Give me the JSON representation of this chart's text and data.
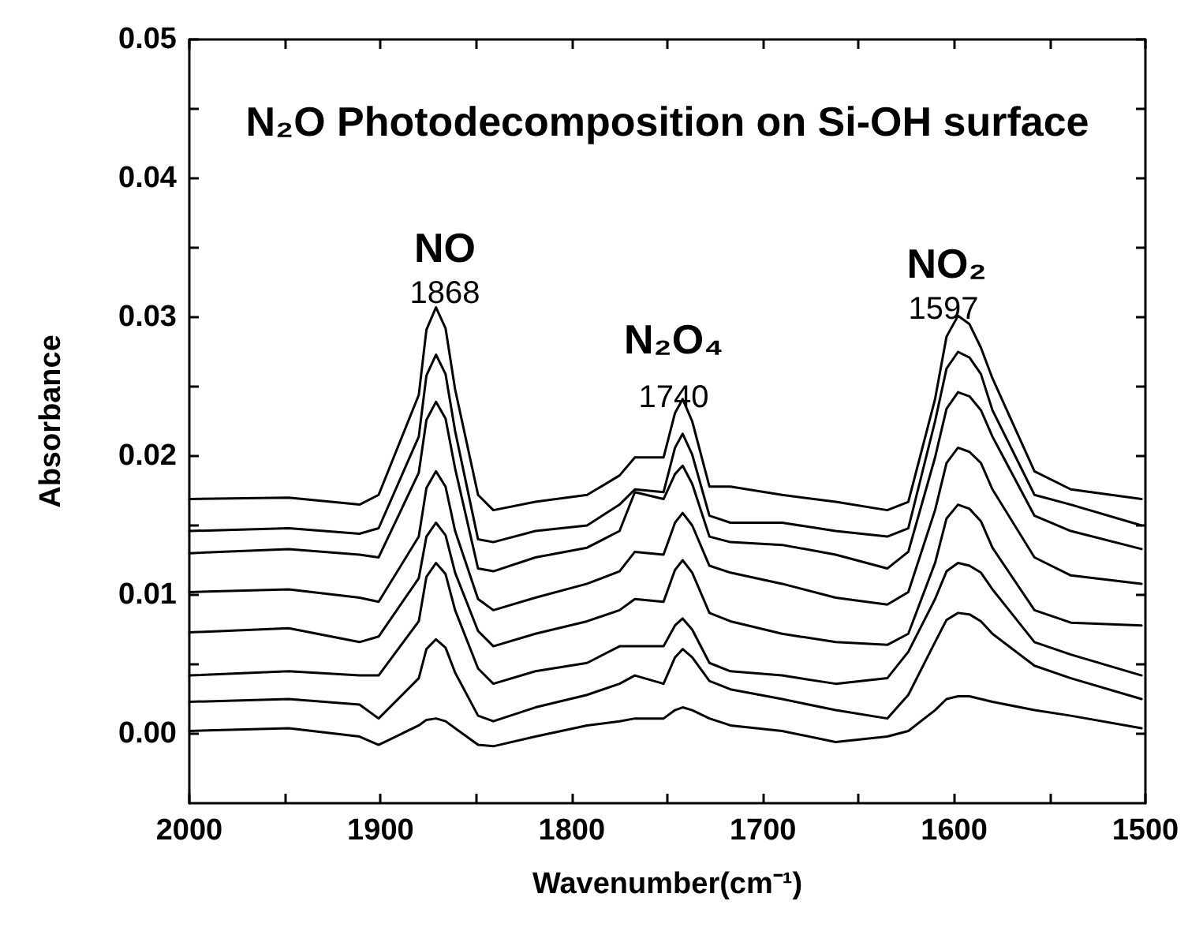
{
  "chart_data": {
    "type": "line",
    "title": "N₂O Photodecomposition on Si-OH surface",
    "xlabel": "Wavenumber(cm⁻¹)",
    "ylabel": "Absorbance",
    "xlim": [
      2000,
      1500
    ],
    "ylim": [
      -0.005,
      0.05
    ],
    "xticks": [
      2000,
      {
        "value": 1950,
        "label": null
      },
      1900,
      {
        "value": 1850,
        "label": null
      },
      1800,
      {
        "value": 1750,
        "label": null
      },
      1700,
      {
        "value": 1650,
        "label": null
      },
      1600,
      {
        "value": 1550,
        "label": null
      },
      1500
    ],
    "yticks": [
      {
        "value": 0,
        "label": "0.00"
      },
      {
        "value": 0.005,
        "label": null
      },
      0.01,
      {
        "value": 0.015,
        "label": null
      },
      0.02,
      {
        "value": 0.025,
        "label": null
      },
      0.03,
      {
        "value": 0.035,
        "label": null
      },
      0.04,
      {
        "value": 0.045,
        "label": null
      },
      0.05
    ],
    "grid": false,
    "x": [
      2000,
      1948,
      1911,
      1901,
      1880,
      1876,
      1871,
      1866,
      1861,
      1849,
      1841,
      1819,
      1792,
      1775,
      1767,
      1752,
      1746,
      1742,
      1737,
      1728,
      1717,
      1690,
      1662,
      1635,
      1624,
      1610,
      1604,
      1598,
      1592,
      1586,
      1580,
      1558,
      1539,
      1502
    ],
    "annotations": [
      "NO",
      "1868",
      "N₂O₄",
      "1740",
      "NO₂",
      "1597"
    ],
    "series": [
      {
        "color": "#000000",
        "values": [
          0.0169,
          0.017,
          0.0165,
          0.0172,
          0.0244,
          0.0291,
          0.0307,
          0.0292,
          0.0248,
          0.0172,
          0.0161,
          0.0167,
          0.0172,
          0.0186,
          0.0199,
          0.0199,
          0.0231,
          0.0241,
          0.0225,
          0.0178,
          0.0178,
          0.0172,
          0.0167,
          0.0161,
          0.0167,
          0.0241,
          0.0286,
          0.0301,
          0.0295,
          0.0278,
          0.0256,
          0.0189,
          0.0176,
          0.0169
        ]
      },
      {
        "color": "#000000",
        "values": [
          0.0146,
          0.0148,
          0.0144,
          0.0148,
          0.0214,
          0.0258,
          0.0273,
          0.0259,
          0.0218,
          0.014,
          0.0138,
          0.0146,
          0.015,
          0.0165,
          0.0176,
          0.0174,
          0.0206,
          0.0216,
          0.0201,
          0.0157,
          0.0152,
          0.0152,
          0.0146,
          0.0142,
          0.0148,
          0.0225,
          0.0263,
          0.0275,
          0.0271,
          0.0259,
          0.0233,
          0.0172,
          0.0165,
          0.015
        ]
      },
      {
        "color": "#000000",
        "values": [
          0.013,
          0.0133,
          0.0129,
          0.0127,
          0.0188,
          0.0226,
          0.0239,
          0.0227,
          0.0191,
          0.0119,
          0.0117,
          0.0127,
          0.0134,
          0.0146,
          0.0174,
          0.0169,
          0.0187,
          0.0193,
          0.018,
          0.0142,
          0.0138,
          0.0136,
          0.0129,
          0.0119,
          0.0131,
          0.0199,
          0.0234,
          0.0246,
          0.0243,
          0.0233,
          0.0214,
          0.0157,
          0.0146,
          0.0133
        ]
      },
      {
        "color": "#000000",
        "values": [
          0.0102,
          0.0104,
          0.0098,
          0.0095,
          0.0142,
          0.0177,
          0.0189,
          0.0178,
          0.0146,
          0.0097,
          0.0089,
          0.0098,
          0.0108,
          0.0117,
          0.0131,
          0.0129,
          0.0152,
          0.0159,
          0.015,
          0.0121,
          0.0116,
          0.0108,
          0.0098,
          0.0093,
          0.0102,
          0.0161,
          0.0195,
          0.0206,
          0.0203,
          0.0195,
          0.0176,
          0.0127,
          0.0114,
          0.0108
        ]
      },
      {
        "color": "#000000",
        "values": [
          0.0073,
          0.0076,
          0.0066,
          0.007,
          0.0112,
          0.0142,
          0.0152,
          0.0143,
          0.0116,
          0.0074,
          0.0063,
          0.0072,
          0.0081,
          0.0089,
          0.0097,
          0.0095,
          0.0118,
          0.0125,
          0.0116,
          0.0087,
          0.0081,
          0.0072,
          0.0066,
          0.0064,
          0.0072,
          0.0123,
          0.0155,
          0.0165,
          0.0162,
          0.0153,
          0.0134,
          0.0089,
          0.008,
          0.0078
        ]
      },
      {
        "color": "#000000",
        "values": [
          0.0042,
          0.0045,
          0.0042,
          0.0042,
          0.0081,
          0.0113,
          0.0123,
          0.0115,
          0.0089,
          0.0047,
          0.0036,
          0.0045,
          0.0051,
          0.0063,
          0.0063,
          0.0063,
          0.0078,
          0.0083,
          0.0075,
          0.0051,
          0.0045,
          0.0042,
          0.0036,
          0.004,
          0.0059,
          0.0097,
          0.0117,
          0.0123,
          0.0121,
          0.0116,
          0.0104,
          0.0066,
          0.0057,
          0.0042
        ]
      },
      {
        "color": "#000000",
        "values": [
          0.0023,
          0.0025,
          0.0021,
          0.0011,
          0.004,
          0.0061,
          0.0068,
          0.0062,
          0.0044,
          0.0013,
          0.0009,
          0.0019,
          0.0028,
          0.0036,
          0.0042,
          0.0036,
          0.0055,
          0.0061,
          0.0055,
          0.0038,
          0.0032,
          0.0025,
          0.0017,
          0.0011,
          0.0028,
          0.0066,
          0.0082,
          0.0087,
          0.0086,
          0.0081,
          0.0072,
          0.0049,
          0.004,
          0.0025
        ]
      },
      {
        "color": "#000000",
        "values": [
          0.0002,
          0.0004,
          -0.0002,
          -0.0008,
          0.0006,
          0.001,
          0.0011,
          0.0009,
          0.0004,
          -0.0008,
          -0.0009,
          -0.0002,
          0.0006,
          0.0009,
          0.0011,
          0.0011,
          0.0017,
          0.0019,
          0.0017,
          0.0011,
          0.0006,
          0.0002,
          -0.0006,
          -0.0002,
          0.0002,
          0.0017,
          0.0025,
          0.0027,
          0.0027,
          0.0025,
          0.0023,
          0.0017,
          0.0013,
          0.0004
        ]
      }
    ]
  }
}
